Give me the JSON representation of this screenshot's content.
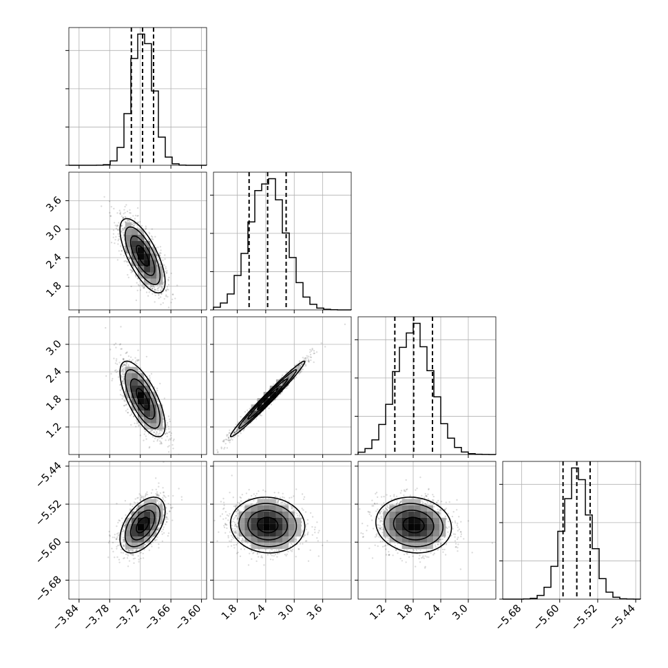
{
  "chart_data": {
    "type": "corner",
    "grid": true,
    "params": [
      {
        "range": [
          -3.86,
          -3.59
        ],
        "ticks": [
          -3.84,
          -3.78,
          -3.72,
          -3.66,
          -3.6
        ],
        "tick_labels": [
          "−3.84",
          "−3.78",
          "−3.72",
          "−3.66",
          "−3.60"
        ],
        "quantiles": [
          -3.7375,
          -3.7155,
          -3.694
        ],
        "mean": -3.7155,
        "sd": 0.0215
      },
      {
        "range": [
          1.3,
          4.2
        ],
        "ticks": [
          1.8,
          2.4,
          3.0,
          3.6
        ],
        "tick_labels": [
          "1.8",
          "2.4",
          "3.0",
          "3.6"
        ],
        "quantiles": [
          2.05,
          2.44,
          2.83
        ],
        "mean": 2.44,
        "sd": 0.38
      },
      {
        "range": [
          0.6,
          3.6
        ],
        "ticks": [
          1.2,
          1.8,
          2.4,
          3.0
        ],
        "tick_labels": [
          "1.2",
          "1.8",
          "2.4",
          "3.0"
        ],
        "quantiles": [
          1.4,
          1.81,
          2.22
        ],
        "mean": 1.81,
        "sd": 0.4
      },
      {
        "range": [
          -5.72,
          -5.43
        ],
        "ticks": [
          -5.68,
          -5.6,
          -5.52,
          -5.44
        ],
        "tick_labels": [
          "−5.68",
          "−5.60",
          "−5.52",
          "−5.44"
        ],
        "quantiles": [
          -5.593,
          -5.564,
          -5.536
        ],
        "mean": -5.564,
        "sd": 0.0285
      }
    ],
    "correlations": [
      {
        "pair": [
          0,
          1
        ],
        "rho": -0.7
      },
      {
        "pair": [
          0,
          2
        ],
        "rho": -0.7
      },
      {
        "pair": [
          1,
          2
        ],
        "rho": 0.985
      },
      {
        "pair": [
          0,
          3
        ],
        "rho": 0.5
      },
      {
        "pair": [
          1,
          3
        ],
        "rho": -0.05
      },
      {
        "pair": [
          2,
          3
        ],
        "rho": -0.1
      }
    ],
    "histogram_bins": 20,
    "scatter_points": 1500,
    "contour_levels": 4
  }
}
